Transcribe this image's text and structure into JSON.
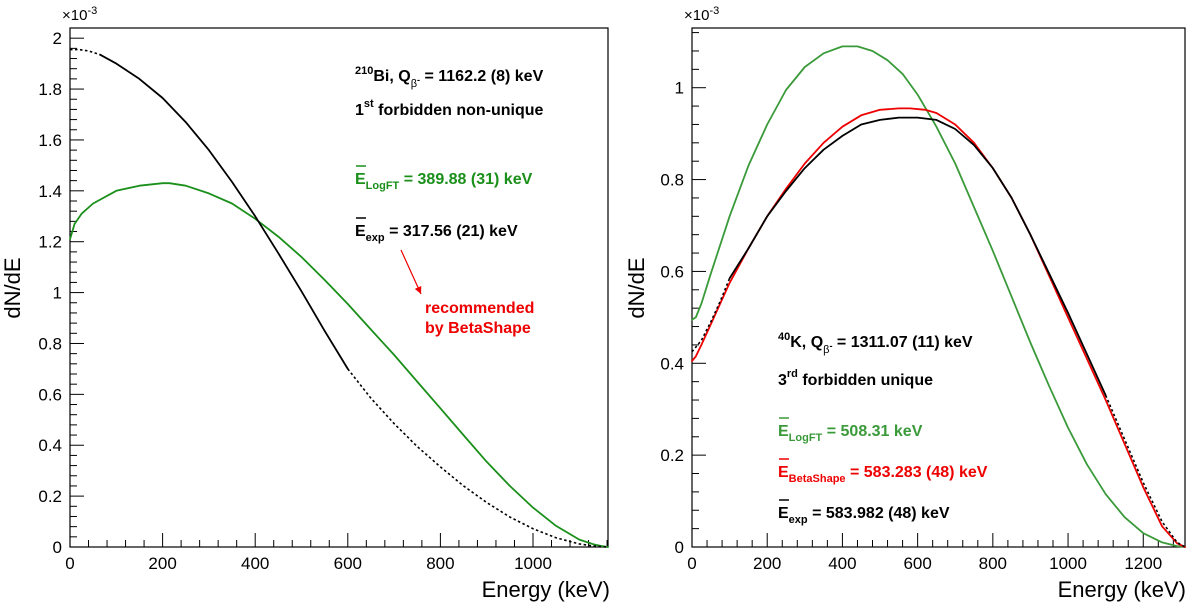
{
  "chart_data": [
    {
      "type": "line",
      "xlabel": "Energy (keV)",
      "ylabel": "dN/dE",
      "y_multiplier": "×10",
      "y_multiplier_exp": "-3",
      "xlim": [
        0,
        1162
      ],
      "ylim": [
        0,
        2.04
      ],
      "xticks": [
        0,
        200,
        400,
        600,
        800,
        1000
      ],
      "yticks": [
        0,
        0.2,
        0.4,
        0.6,
        0.8,
        1,
        1.2,
        1.4,
        1.6,
        1.8,
        2
      ],
      "series": [
        {
          "color": "#1a8f1a",
          "style": "solid",
          "x": [
            0,
            10,
            25,
            50,
            100,
            150,
            200,
            215,
            250,
            300,
            350,
            400,
            450,
            500,
            550,
            600,
            650,
            700,
            750,
            800,
            850,
            900,
            950,
            1000,
            1050,
            1100,
            1130,
            1150,
            1162
          ],
          "y": [
            1.21,
            1.27,
            1.31,
            1.35,
            1.4,
            1.42,
            1.43,
            1.43,
            1.42,
            1.39,
            1.35,
            1.29,
            1.22,
            1.14,
            1.05,
            0.955,
            0.855,
            0.755,
            0.65,
            0.545,
            0.44,
            0.335,
            0.24,
            0.155,
            0.083,
            0.029,
            0.011,
            0.003,
            0.0
          ]
        },
        {
          "color": "#000000",
          "style": "dotted",
          "x": [
            0,
            20,
            40,
            65
          ],
          "y": [
            1.955,
            1.955,
            1.95,
            1.935
          ]
        },
        {
          "color": "#000000",
          "style": "solid",
          "x": [
            65,
            100,
            150,
            200,
            250,
            300,
            350,
            400,
            450,
            500,
            550,
            600
          ],
          "y": [
            1.935,
            1.9,
            1.84,
            1.765,
            1.67,
            1.56,
            1.435,
            1.3,
            1.155,
            1.005,
            0.85,
            0.7
          ]
        },
        {
          "color": "#000000",
          "style": "dotted",
          "x": [
            600,
            650,
            700,
            750,
            800,
            850,
            900,
            950,
            1000,
            1050,
            1100,
            1130,
            1150,
            1162
          ],
          "y": [
            0.7,
            0.585,
            0.485,
            0.395,
            0.315,
            0.24,
            0.175,
            0.118,
            0.072,
            0.036,
            0.012,
            0.004,
            0.001,
            0.0
          ]
        }
      ],
      "annotations": {
        "nuclide_mass": "210",
        "nuclide_rest": "Bi, Q",
        "q_sub": "β",
        "q_sup": "-",
        "q_value": " = 1162.2 (8) keV",
        "order": "1",
        "order_sup": "st",
        "transition": " forbidden non-unique",
        "logft_E": "E",
        "logft_sub": "LogFT",
        "logft_value": " = 389.88 (31) keV",
        "exp_E": "E",
        "exp_sub": "exp",
        "exp_value": " = 317.56 (21) keV",
        "recommended_1": "recommended",
        "recommended_2": "by BetaShape"
      },
      "colors": {
        "logft": "#1a8f1a",
        "exp": "#000000",
        "recommended": "#ee0000"
      }
    },
    {
      "type": "line",
      "xlabel": "Energy (keV)",
      "ylabel": "dN/dE",
      "y_multiplier": "×10",
      "y_multiplier_exp": "-3",
      "xlim": [
        0,
        1311
      ],
      "ylim": [
        0,
        1.13
      ],
      "xticks": [
        0,
        200,
        400,
        600,
        800,
        1000,
        1200
      ],
      "yticks": [
        0,
        0.2,
        0.4,
        0.6,
        0.8,
        1
      ],
      "series": [
        {
          "color": "#3a9a3a",
          "style": "solid",
          "x": [
            0,
            10,
            25,
            50,
            100,
            150,
            200,
            250,
            300,
            350,
            400,
            440,
            480,
            520,
            560,
            600,
            650,
            700,
            750,
            800,
            850,
            900,
            950,
            1000,
            1050,
            1100,
            1150,
            1200,
            1250,
            1290,
            1311
          ],
          "y": [
            0.495,
            0.5,
            0.53,
            0.595,
            0.72,
            0.83,
            0.92,
            0.995,
            1.045,
            1.075,
            1.09,
            1.09,
            1.08,
            1.06,
            1.03,
            0.985,
            0.915,
            0.835,
            0.74,
            0.645,
            0.545,
            0.445,
            0.35,
            0.26,
            0.18,
            0.115,
            0.065,
            0.03,
            0.01,
            0.002,
            0.0
          ]
        },
        {
          "color": "#ee0000",
          "style": "solid",
          "x": [
            0,
            10,
            25,
            50,
            100,
            150,
            200,
            250,
            300,
            350,
            400,
            450,
            500,
            550,
            580,
            620,
            650,
            700,
            750,
            800,
            850,
            900,
            950,
            1000,
            1050,
            1100,
            1150,
            1200,
            1250,
            1290,
            1311
          ],
          "y": [
            0.405,
            0.415,
            0.44,
            0.485,
            0.575,
            0.65,
            0.72,
            0.78,
            0.835,
            0.88,
            0.915,
            0.94,
            0.952,
            0.955,
            0.955,
            0.952,
            0.945,
            0.92,
            0.88,
            0.825,
            0.76,
            0.68,
            0.59,
            0.5,
            0.41,
            0.32,
            0.225,
            0.13,
            0.045,
            0.008,
            0.0
          ]
        },
        {
          "color": "#000000",
          "style": "dotted",
          "x": [
            0,
            25,
            50,
            75,
            100
          ],
          "y": [
            0.425,
            0.45,
            0.49,
            0.535,
            0.585
          ]
        },
        {
          "color": "#000000",
          "style": "solid",
          "x": [
            100,
            150,
            200,
            250,
            300,
            350,
            400,
            450,
            500,
            550,
            600,
            650,
            700,
            750,
            800,
            850,
            900,
            950,
            1000,
            1050,
            1100
          ],
          "y": [
            0.585,
            0.65,
            0.72,
            0.775,
            0.825,
            0.865,
            0.895,
            0.92,
            0.93,
            0.935,
            0.935,
            0.93,
            0.91,
            0.875,
            0.825,
            0.76,
            0.68,
            0.595,
            0.51,
            0.42,
            0.33
          ]
        },
        {
          "color": "#000000",
          "style": "dotted",
          "x": [
            1100,
            1150,
            1200,
            1250,
            1290,
            1311
          ],
          "y": [
            0.33,
            0.235,
            0.14,
            0.055,
            0.01,
            0.0
          ]
        }
      ],
      "annotations": {
        "nuclide_mass": "40",
        "nuclide_rest": "K, Q",
        "q_sub": "β",
        "q_sup": "-",
        "q_value": " = 1311.07 (11) keV",
        "order": "3",
        "order_sup": "rd",
        "transition": " forbidden unique",
        "logft_E": "E",
        "logft_sub": "LogFT",
        "logft_value": " = 508.31 keV",
        "betashape_E": "E",
        "betashape_sub": "BetaShape",
        "betashape_value": " = 583.283 (48) keV",
        "exp_E": "E",
        "exp_sub": "exp",
        "exp_value": " = 583.982 (48) keV"
      },
      "colors": {
        "logft": "#3a9a3a",
        "betashape": "#ee0000",
        "exp": "#000000"
      }
    }
  ]
}
